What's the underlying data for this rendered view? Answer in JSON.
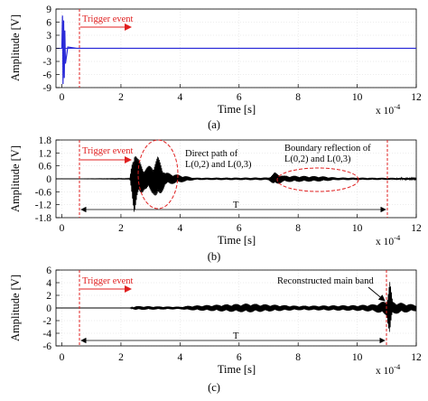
{
  "figure": {
    "xlabel": "Time [s]",
    "ylabel": "Amplitude [V]",
    "exponent_base": "x 10",
    "exponent_power": "-4",
    "trigger_label": "Trigger event",
    "period_label": "T"
  },
  "chart_data": [
    {
      "type": "line",
      "panel_label": "(a)",
      "xlabel": "Time [s]",
      "ylabel": "Amplitude [V]",
      "xlim": [
        -0.2,
        12
      ],
      "ylim": [
        -9,
        9
      ],
      "xticks": [
        "0",
        "2",
        "4",
        "6",
        "8",
        "10",
        "12"
      ],
      "yticks": [
        "9",
        "6",
        "3",
        "0",
        "-3",
        "-6",
        "-9"
      ],
      "x_unit_multiplier": "x 10^-4",
      "trigger_time": 0,
      "annotations": [
        "Trigger event"
      ],
      "series": [
        {
          "color": "#2b2bd8",
          "x": [
            0,
            0.02,
            0.04,
            0.06,
            0.08,
            0.1,
            0.12,
            0.2,
            0.5,
            12
          ],
          "y": [
            0,
            7.5,
            -8.2,
            6.4,
            -6.8,
            4.1,
            -3.5,
            0.3,
            0,
            0
          ]
        }
      ]
    },
    {
      "type": "line",
      "panel_label": "(b)",
      "xlabel": "Time [s]",
      "ylabel": "Amplitude [V]",
      "xlim": [
        -0.2,
        12
      ],
      "ylim": [
        -1.8,
        1.8
      ],
      "xticks": [
        "0",
        "2",
        "4",
        "6",
        "8",
        "10",
        "12"
      ],
      "yticks": [
        "1.8",
        "1.2",
        "0.6",
        "0",
        "-0.6",
        "-1.2",
        "-1.8"
      ],
      "x_unit_multiplier": "x 10^-4",
      "trigger_time": 0,
      "period_end": 11.2,
      "annotations": [
        "Trigger event",
        "Direct path of L(0,2) and L(0,3)",
        "Boundary reflection of L(0,2) and L(0,3)",
        "T"
      ],
      "envelope_points": [
        {
          "x": 0,
          "y": 0
        },
        {
          "x": 2.3,
          "y": 0.02
        },
        {
          "x": 2.45,
          "y": 1.6
        },
        {
          "x": 2.55,
          "y": 1.0
        },
        {
          "x": 2.8,
          "y": 0.5
        },
        {
          "x": 3.1,
          "y": 0.7
        },
        {
          "x": 3.25,
          "y": 1.05
        },
        {
          "x": 3.5,
          "y": 0.3
        },
        {
          "x": 4.5,
          "y": 0.05
        },
        {
          "x": 7.0,
          "y": 0.06
        },
        {
          "x": 7.2,
          "y": 0.3
        },
        {
          "x": 7.5,
          "y": 0.15
        },
        {
          "x": 8.8,
          "y": 0.12
        },
        {
          "x": 9.3,
          "y": 0.06
        },
        {
          "x": 12,
          "y": 0.04
        }
      ]
    },
    {
      "type": "line",
      "panel_label": "(c)",
      "xlabel": "Time [s]",
      "ylabel": "Amplitude [V]",
      "xlim": [
        -0.2,
        12
      ],
      "ylim": [
        -6,
        6
      ],
      "xticks": [
        "0",
        "2",
        "4",
        "6",
        "8",
        "10",
        "12"
      ],
      "yticks": [
        "6",
        "4",
        "2",
        "0",
        "-2",
        "-4",
        "-6"
      ],
      "x_unit_multiplier": "x 10^-4",
      "trigger_time": 0,
      "period_end": 11.1,
      "annotations": [
        "Trigger event",
        "Reconstructed main band",
        "T"
      ],
      "envelope_points": [
        {
          "x": 0,
          "y": 0
        },
        {
          "x": 2.3,
          "y": 0.02
        },
        {
          "x": 2.5,
          "y": 0.3
        },
        {
          "x": 4.0,
          "y": 0.2
        },
        {
          "x": 4.3,
          "y": 0.35
        },
        {
          "x": 6.3,
          "y": 0.7
        },
        {
          "x": 8.0,
          "y": 0.35
        },
        {
          "x": 10.0,
          "y": 0.45
        },
        {
          "x": 10.6,
          "y": 0.6
        },
        {
          "x": 11.0,
          "y": 1.2
        },
        {
          "x": 11.1,
          "y": 4.7
        },
        {
          "x": 11.2,
          "y": 1.0
        },
        {
          "x": 12,
          "y": 0.5
        }
      ]
    }
  ]
}
